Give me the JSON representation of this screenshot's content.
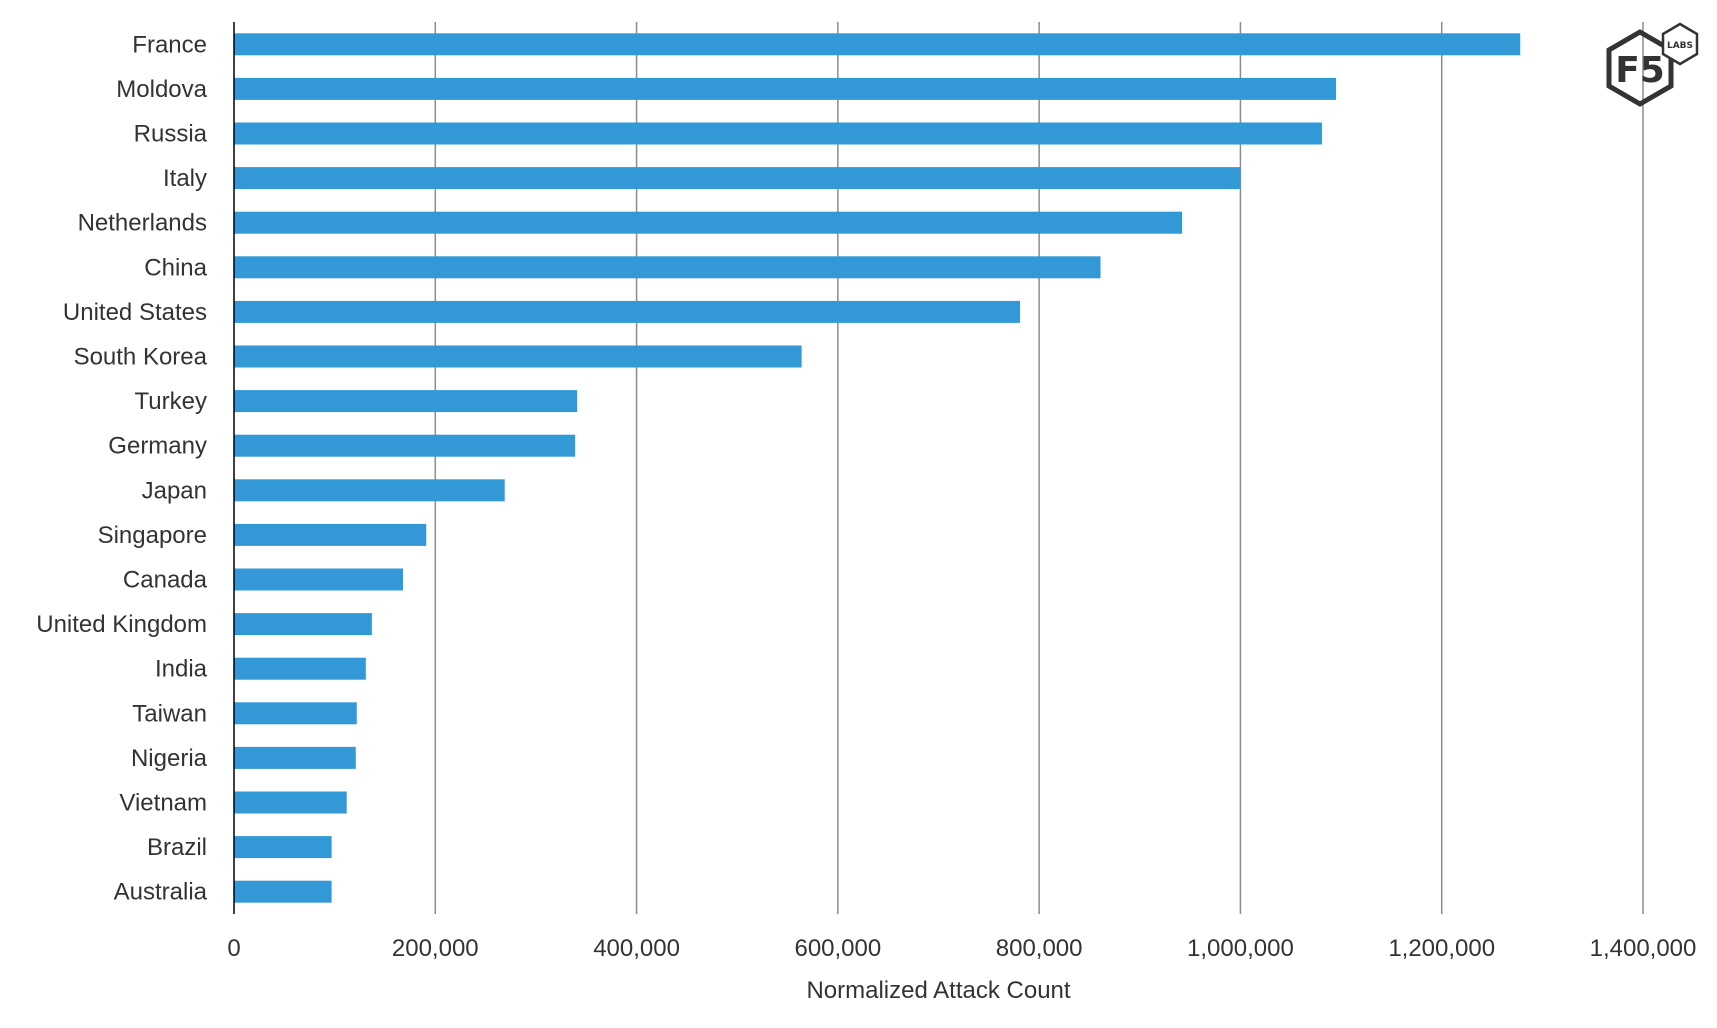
{
  "chart_data": {
    "type": "bar",
    "orientation": "horizontal",
    "categories": [
      "France",
      "Moldova",
      "Russia",
      "Italy",
      "Netherlands",
      "China",
      "United States",
      "South Korea",
      "Turkey",
      "Germany",
      "Japan",
      "Singapore",
      "Canada",
      "United Kingdom",
      "India",
      "Taiwan",
      "Nigeria",
      "Vietnam",
      "Brazil",
      "Australia"
    ],
    "values": [
      1278000,
      1095000,
      1081000,
      1000000,
      942000,
      861000,
      781000,
      564000,
      341000,
      339000,
      269000,
      191000,
      168000,
      137000,
      131000,
      122000,
      121000,
      112000,
      97000,
      97000
    ],
    "xlabel": "Normalized Attack Count",
    "ylabel": "",
    "title": "",
    "xlim": [
      0,
      1400000
    ],
    "xticks": [
      0,
      200000,
      400000,
      600000,
      800000,
      1000000,
      1200000,
      1400000
    ],
    "xtick_labels": [
      "0",
      "200,000",
      "400,000",
      "600,000",
      "800,000",
      "1,000,000",
      "1,200,000",
      "1,400,000"
    ],
    "grid": true,
    "colors": {
      "bar": "#3399d6",
      "grid": "#8c8c8c",
      "axis": "#000000",
      "text": "#333333"
    }
  },
  "logo": {
    "main_text": "F5",
    "badge_text": "LABS"
  }
}
